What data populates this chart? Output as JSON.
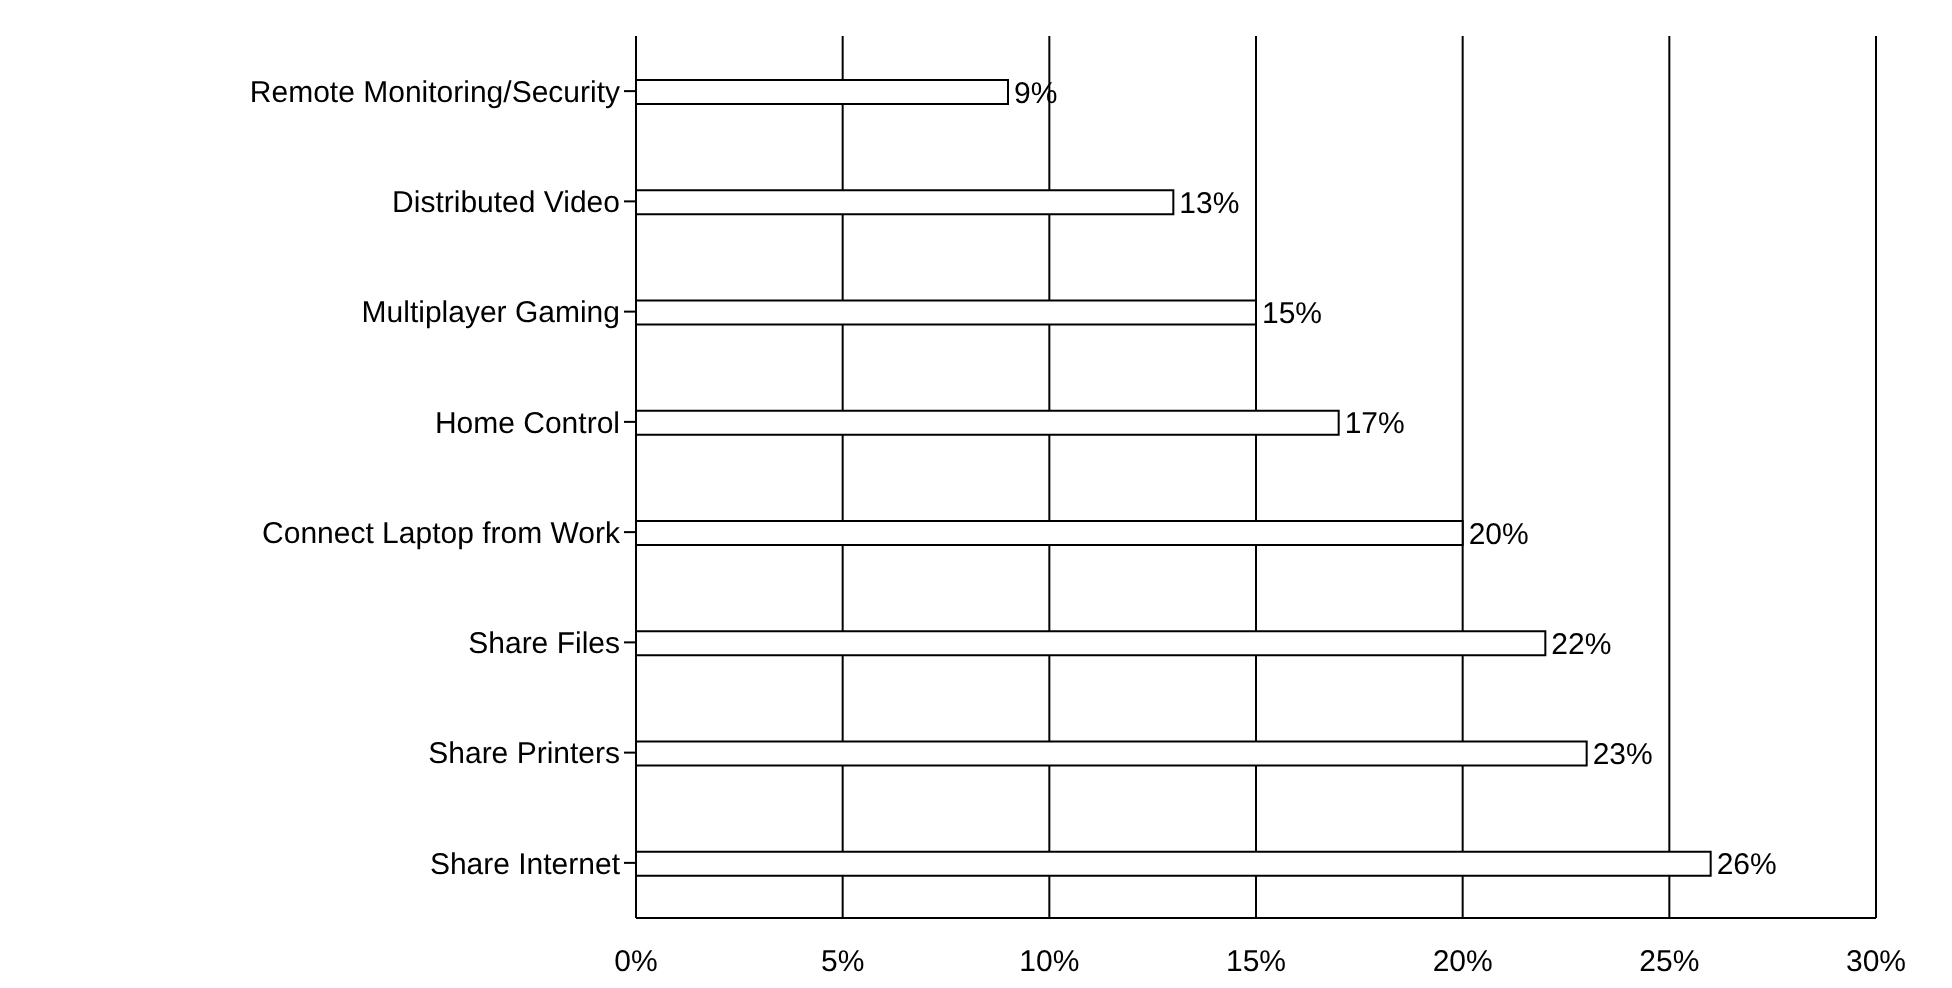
{
  "chart_data": {
    "type": "bar",
    "orientation": "horizontal",
    "categories": [
      "Remote Monitoring/Security",
      "Distributed Video",
      "Multiplayer Gaming",
      "Home Control",
      "Connect Laptop from Work",
      "Share Files",
      "Share Printers",
      "Share Internet"
    ],
    "values": [
      9,
      13,
      15,
      17,
      20,
      22,
      23,
      26
    ],
    "color": "#ffffff",
    "xlim": [
      0,
      30
    ],
    "xticks": [
      {
        "value": 0,
        "label": "0%"
      },
      {
        "value": 5,
        "label": "5%"
      },
      {
        "value": 10,
        "label": "10%"
      },
      {
        "value": 15,
        "label": "15%"
      },
      {
        "value": 20,
        "label": "20%"
      },
      {
        "value": 25,
        "label": "25%"
      },
      {
        "value": 30,
        "label": "30%"
      }
    ],
    "value_labels": [
      "9%",
      "13%",
      "15%",
      "17%",
      "20%",
      "22%",
      "23%",
      "26%"
    ],
    "grid": "x"
  }
}
